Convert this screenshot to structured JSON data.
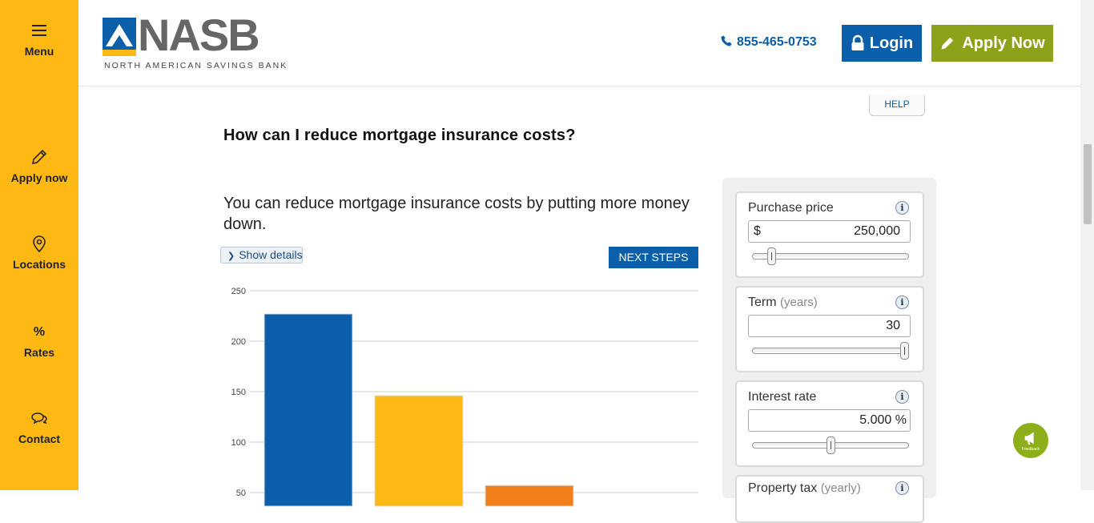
{
  "sidebar": {
    "items": [
      {
        "label": "Menu",
        "icon": "hamburger-icon"
      },
      {
        "label": "Apply now",
        "icon": "pencil-icon"
      },
      {
        "label": "Locations",
        "icon": "map-pin-icon"
      },
      {
        "label": "Rates",
        "icon": "percent-icon"
      },
      {
        "label": "Contact",
        "icon": "chat-bubbles-icon"
      }
    ]
  },
  "header": {
    "logo_word": "NASB",
    "logo_subtitle": "NORTH AMERICAN SAVINGS BANK",
    "phone": "855-465-0753",
    "login_label": "Login",
    "apply_label": "Apply Now"
  },
  "content": {
    "help_label": "HELP",
    "question": "How can I reduce mortgage insurance costs?",
    "answer": "You can reduce mortgage insurance costs by putting more money down.",
    "show_details_label": "Show details",
    "next_steps_label": "NEXT STEPS"
  },
  "chart_data": {
    "type": "bar",
    "categories": [
      "",
      "",
      ""
    ],
    "values": [
      227,
      146,
      57
    ],
    "colors": [
      "#0A5EAA",
      "#FDB813",
      "#F07F1A"
    ],
    "yticks": [
      50,
      100,
      150,
      200,
      250
    ],
    "ylim": [
      0,
      250
    ],
    "grid": true
  },
  "calculator": {
    "purchase_price": {
      "label": "Purchase price",
      "prefix": "$",
      "value": "250,000",
      "slider_fraction": 0.1
    },
    "term": {
      "label": "Term",
      "sublabel": "(years)",
      "value": "30",
      "slider_fraction": 1.0
    },
    "interest_rate": {
      "label": "Interest rate",
      "value": "5.000 %",
      "slider_fraction": 0.5
    },
    "property_tax": {
      "label": "Property tax",
      "sublabel": "(yearly)"
    }
  },
  "feedback": {
    "label": "Feedback"
  },
  "colors": {
    "brand_blue": "#0A5EAA",
    "brand_yellow": "#FDB813",
    "apply_green": "#8DA11A"
  }
}
